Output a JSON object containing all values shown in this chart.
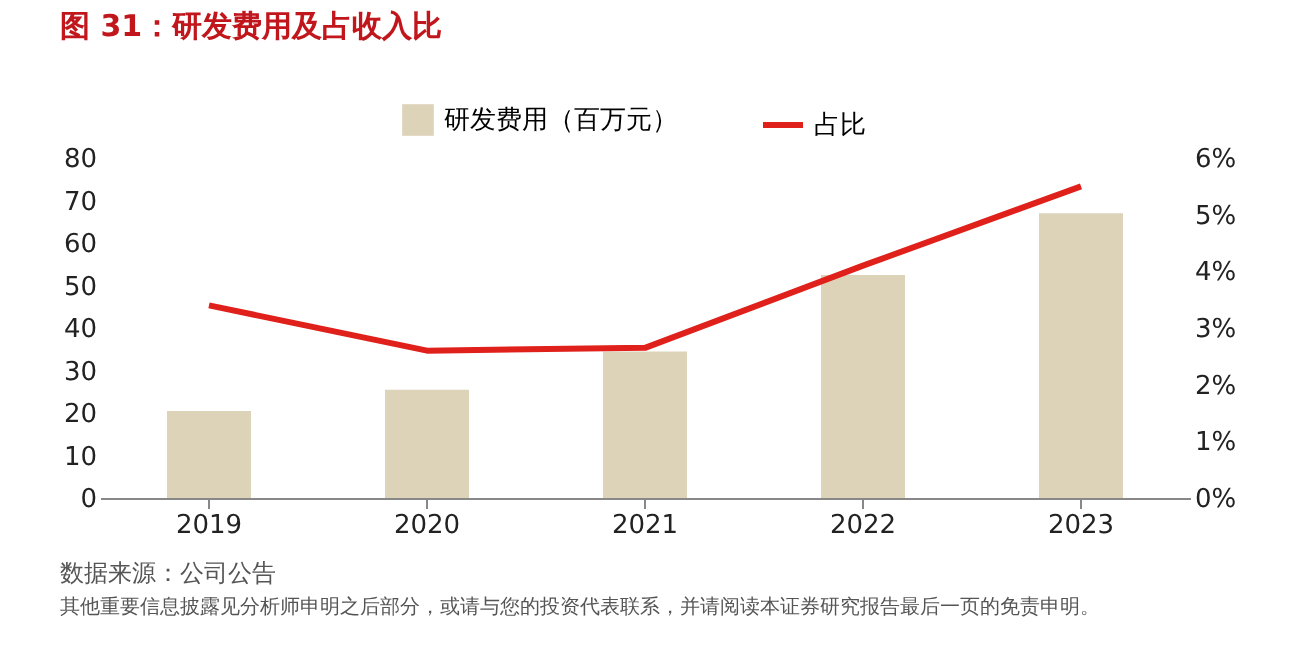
{
  "chart_data": {
    "type": "bar",
    "title": "图 31：研发费用及占收入比",
    "categories": [
      "2019",
      "2020",
      "2021",
      "2022",
      "2023"
    ],
    "series": [
      {
        "name": "研发费用（百万元）",
        "color": "#ddd3b9",
        "values": [
          20.5,
          25.5,
          34.5,
          52.5,
          67
        ]
      },
      {
        "name": "占比",
        "type": "line",
        "axis": "y2",
        "color": "#e0201b",
        "values": [
          3.4,
          2.6,
          2.65,
          4.1,
          5.5
        ]
      }
    ],
    "ylim": [
      0,
      80
    ],
    "yticks": [
      0,
      10,
      20,
      30,
      40,
      50,
      60,
      70,
      80
    ],
    "y2lim": [
      0,
      6
    ],
    "y2ticks": [
      {
        "value": 0,
        "label": "0%"
      },
      {
        "value": 1,
        "label": "1%"
      },
      {
        "value": 2,
        "label": "2%"
      },
      {
        "value": 3,
        "label": "3%"
      },
      {
        "value": 4,
        "label": "4%"
      },
      {
        "value": 5,
        "label": "5%"
      },
      {
        "value": 6,
        "label": "6%"
      }
    ],
    "grid": false,
    "legend": "top",
    "marker": "none",
    "annotations": [
      "数据来源：公司公告",
      "其他重要信息披露见分析师申明之后部分，或请与您的投资代表联系，并请阅读本证券研究报告最后一页的免责申明。"
    ]
  }
}
